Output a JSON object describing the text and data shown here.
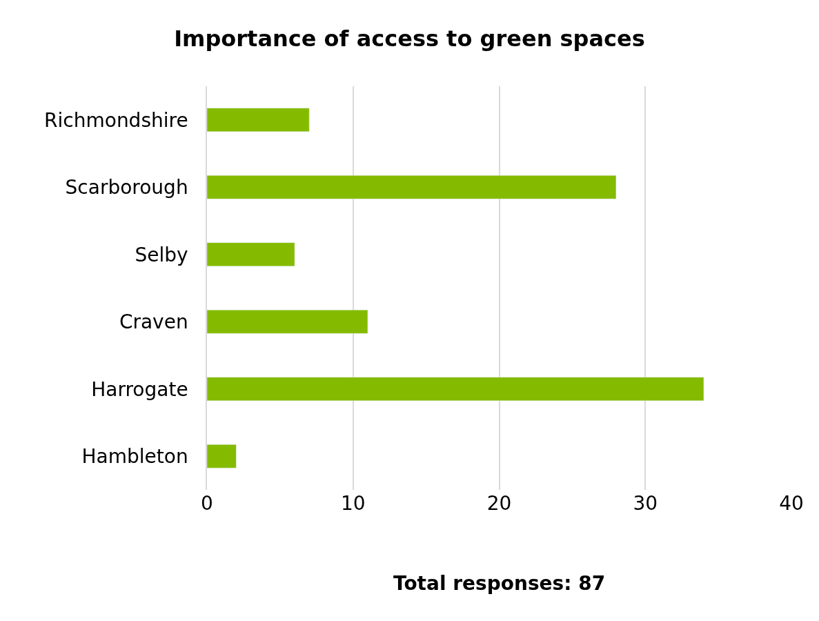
{
  "chart_data": {
    "type": "bar",
    "orientation": "horizontal",
    "title": "Importance of access to green spaces",
    "categories": [
      "Richmondshire",
      "Scarborough",
      "Selby",
      "Craven",
      "Harrogate",
      "Hambleton"
    ],
    "values": [
      7,
      28,
      6,
      11,
      34,
      2
    ],
    "color": "#84bb00",
    "xlim": [
      0,
      40
    ],
    "xticks": [
      0,
      10,
      20,
      30,
      40
    ],
    "grid": "x",
    "legend": false,
    "annotations": [
      "Total responses: 87"
    ]
  }
}
